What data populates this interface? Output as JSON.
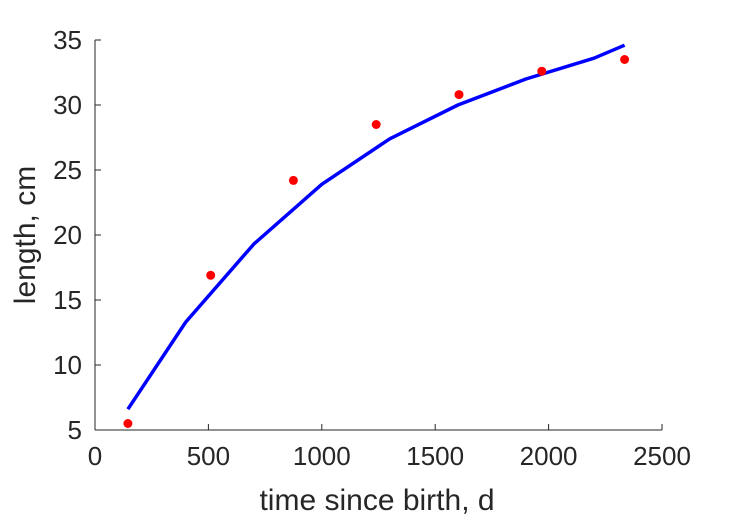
{
  "chart_data": {
    "type": "scatter",
    "title": "",
    "xlabel": "time since birth, d",
    "ylabel": "length, cm",
    "xlim": [
      0,
      2500
    ],
    "ylim": [
      5,
      35
    ],
    "xticks": [
      0,
      500,
      1000,
      1500,
      2000,
      2500
    ],
    "yticks": [
      5,
      10,
      15,
      20,
      25,
      30,
      35
    ],
    "xtick_labels": [
      "0",
      "500",
      "1000",
      "1500",
      "2000",
      "2500"
    ],
    "ytick_labels": [
      "5",
      "10",
      "15",
      "20",
      "25",
      "30",
      "35"
    ],
    "grid": false,
    "legend": "none",
    "series": [
      {
        "kind": "points",
        "color": "#ff0000",
        "x": [
          145,
          510,
          875,
          1240,
          1605,
          1970,
          2335
        ],
        "y": [
          5.5,
          16.9,
          24.2,
          28.5,
          30.8,
          32.6,
          33.5
        ]
      },
      {
        "kind": "line",
        "color": "#0000ff",
        "x": [
          145,
          400,
          700,
          1000,
          1300,
          1600,
          1900,
          2200,
          2335
        ],
        "y": [
          6.6,
          13.3,
          19.3,
          23.9,
          27.4,
          30.0,
          32.0,
          33.6,
          34.6
        ]
      }
    ]
  }
}
